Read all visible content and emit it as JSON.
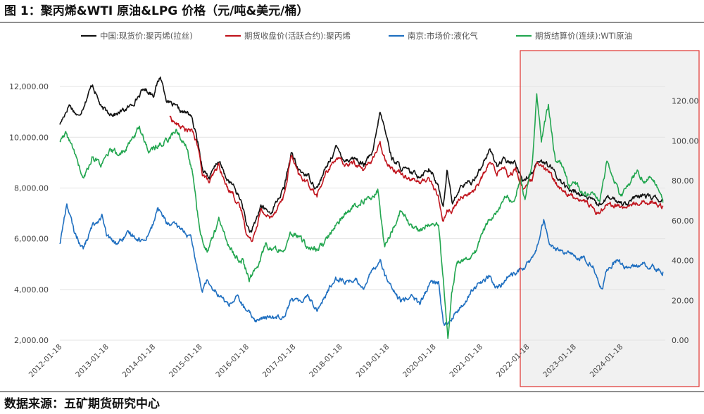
{
  "figure": {
    "title": "图 1：聚丙烯&WTI 原油&LPG 价格（元/吨&美元/桶）",
    "source": "数据来源：五矿期货研究中心"
  },
  "highlight": {
    "label": "2022 onward",
    "stroke": "#e0332f",
    "fill": "#f1f1f1"
  },
  "chart_data": {
    "type": "line",
    "x_tick_labels": [
      "2012-01-18",
      "2013-01-18",
      "2014-01-18",
      "2015-01-18",
      "2016-01-18",
      "2017-01-18",
      "2018-01-18",
      "2019-01-18",
      "2020-01-18",
      "2021-01-18",
      "2022-01-18",
      "2023-01-18",
      "2024-01-18"
    ],
    "x_range": [
      2012.0,
      2024.95
    ],
    "y_left": {
      "range": [
        2000,
        13000
      ],
      "ticks": [
        2000,
        4000,
        6000,
        8000,
        10000,
        12000
      ],
      "tick_labels": [
        "2,000.00",
        "4,000.00",
        "6,000.00",
        "8,000.00",
        "10,000.00",
        "12,000.00"
      ]
    },
    "y_right": {
      "range": [
        0,
        140
      ],
      "ticks": [
        0,
        20,
        40,
        60,
        80,
        100,
        120
      ],
      "tick_labels": [
        "0.00",
        "20.00",
        "40.00",
        "60.00",
        "80.00",
        "100.00",
        "120.00"
      ]
    },
    "series": [
      {
        "name": "中国:现货价:聚丙烯(拉丝)",
        "axis": "left",
        "color": "#111111",
        "points": [
          [
            2012.0,
            10500
          ],
          [
            2012.2,
            11300
          ],
          [
            2012.4,
            10800
          ],
          [
            2012.7,
            12100
          ],
          [
            2012.9,
            11100
          ],
          [
            2013.2,
            10900
          ],
          [
            2013.5,
            11200
          ],
          [
            2013.8,
            11900
          ],
          [
            2014.0,
            11700
          ],
          [
            2014.15,
            12400
          ],
          [
            2014.3,
            11400
          ],
          [
            2014.6,
            11000
          ],
          [
            2014.8,
            10900
          ],
          [
            2014.95,
            9800
          ],
          [
            2015.05,
            8800
          ],
          [
            2015.2,
            8400
          ],
          [
            2015.4,
            9100
          ],
          [
            2015.55,
            8400
          ],
          [
            2015.7,
            8100
          ],
          [
            2015.9,
            7400
          ],
          [
            2016.0,
            6500
          ],
          [
            2016.1,
            6200
          ],
          [
            2016.3,
            7300
          ],
          [
            2016.5,
            7000
          ],
          [
            2016.8,
            8000
          ],
          [
            2016.95,
            9400
          ],
          [
            2017.1,
            8700
          ],
          [
            2017.3,
            8500
          ],
          [
            2017.5,
            8000
          ],
          [
            2017.7,
            8800
          ],
          [
            2017.9,
            9600
          ],
          [
            2018.1,
            9100
          ],
          [
            2018.3,
            9200
          ],
          [
            2018.5,
            8900
          ],
          [
            2018.7,
            9400
          ],
          [
            2018.85,
            11000
          ],
          [
            2018.95,
            10300
          ],
          [
            2019.1,
            9200
          ],
          [
            2019.3,
            8800
          ],
          [
            2019.5,
            8600
          ],
          [
            2019.7,
            8500
          ],
          [
            2019.9,
            8800
          ],
          [
            2020.1,
            8000
          ],
          [
            2020.2,
            7300
          ],
          [
            2020.28,
            8700
          ],
          [
            2020.4,
            7400
          ],
          [
            2020.6,
            8100
          ],
          [
            2020.8,
            8200
          ],
          [
            2021.0,
            8800
          ],
          [
            2021.2,
            9500
          ],
          [
            2021.35,
            8900
          ],
          [
            2021.5,
            9100
          ],
          [
            2021.6,
            9000
          ],
          [
            2021.75,
            9000
          ],
          [
            2021.9,
            8300
          ],
          [
            2022.1,
            8600
          ],
          [
            2022.2,
            9100
          ],
          [
            2022.35,
            9000
          ],
          [
            2022.5,
            8800
          ],
          [
            2022.7,
            8300
          ],
          [
            2022.9,
            7900
          ],
          [
            2023.1,
            7800
          ],
          [
            2023.3,
            7600
          ],
          [
            2023.5,
            7300
          ],
          [
            2023.7,
            7600
          ],
          [
            2023.9,
            7500
          ],
          [
            2024.1,
            7400
          ],
          [
            2024.3,
            7600
          ],
          [
            2024.5,
            7700
          ],
          [
            2024.7,
            7600
          ],
          [
            2024.9,
            7500
          ]
        ]
      },
      {
        "name": "期货收盘价(活跃合约):聚丙烯",
        "axis": "left",
        "color": "#c0141d",
        "points": [
          [
            2014.35,
            10800
          ],
          [
            2014.5,
            10500
          ],
          [
            2014.7,
            10300
          ],
          [
            2014.85,
            10200
          ],
          [
            2014.95,
            9600
          ],
          [
            2015.05,
            8600
          ],
          [
            2015.2,
            8200
          ],
          [
            2015.4,
            8900
          ],
          [
            2015.55,
            8100
          ],
          [
            2015.7,
            7800
          ],
          [
            2015.9,
            7000
          ],
          [
            2016.0,
            6200
          ],
          [
            2016.1,
            5900
          ],
          [
            2016.3,
            7100
          ],
          [
            2016.5,
            6800
          ],
          [
            2016.8,
            7700
          ],
          [
            2016.95,
            9300
          ],
          [
            2017.1,
            8500
          ],
          [
            2017.3,
            8200
          ],
          [
            2017.5,
            7700
          ],
          [
            2017.7,
            8600
          ],
          [
            2017.9,
            9200
          ],
          [
            2018.1,
            8900
          ],
          [
            2018.3,
            9000
          ],
          [
            2018.5,
            8700
          ],
          [
            2018.7,
            9200
          ],
          [
            2018.85,
            9700
          ],
          [
            2018.95,
            9200
          ],
          [
            2019.1,
            8800
          ],
          [
            2019.3,
            8600
          ],
          [
            2019.5,
            8400
          ],
          [
            2019.7,
            8200
          ],
          [
            2019.9,
            8400
          ],
          [
            2020.1,
            7600
          ],
          [
            2020.2,
            6700
          ],
          [
            2020.28,
            7100
          ],
          [
            2020.4,
            7100
          ],
          [
            2020.6,
            7700
          ],
          [
            2020.8,
            7800
          ],
          [
            2021.0,
            8300
          ],
          [
            2021.2,
            9000
          ],
          [
            2021.35,
            8600
          ],
          [
            2021.5,
            8900
          ],
          [
            2021.6,
            8500
          ],
          [
            2021.75,
            8700
          ],
          [
            2021.9,
            8000
          ],
          [
            2022.1,
            8300
          ],
          [
            2022.2,
            8900
          ],
          [
            2022.35,
            8800
          ],
          [
            2022.5,
            8500
          ],
          [
            2022.7,
            8000
          ],
          [
            2022.9,
            7700
          ],
          [
            2023.1,
            7600
          ],
          [
            2023.3,
            7400
          ],
          [
            2023.5,
            7000
          ],
          [
            2023.7,
            7400
          ],
          [
            2023.9,
            7300
          ],
          [
            2024.1,
            7200
          ],
          [
            2024.3,
            7400
          ],
          [
            2024.5,
            7500
          ],
          [
            2024.7,
            7400
          ],
          [
            2024.9,
            7300
          ]
        ]
      },
      {
        "name": "南京:市场价:液化气",
        "axis": "left",
        "color": "#1f6fc0",
        "points": [
          [
            2012.0,
            5800
          ],
          [
            2012.15,
            7400
          ],
          [
            2012.3,
            6300
          ],
          [
            2012.5,
            5600
          ],
          [
            2012.7,
            6500
          ],
          [
            2012.9,
            6900
          ],
          [
            2013.0,
            6100
          ],
          [
            2013.2,
            5800
          ],
          [
            2013.5,
            6200
          ],
          [
            2013.8,
            5900
          ],
          [
            2014.0,
            6600
          ],
          [
            2014.1,
            7200
          ],
          [
            2014.3,
            6600
          ],
          [
            2014.6,
            6400
          ],
          [
            2014.8,
            6000
          ],
          [
            2014.95,
            4700
          ],
          [
            2015.05,
            4000
          ],
          [
            2015.15,
            4400
          ],
          [
            2015.4,
            3800
          ],
          [
            2015.6,
            3400
          ],
          [
            2015.8,
            3700
          ],
          [
            2016.0,
            3100
          ],
          [
            2016.2,
            2800
          ],
          [
            2016.5,
            2900
          ],
          [
            2016.8,
            3000
          ],
          [
            2016.95,
            3600
          ],
          [
            2017.1,
            3500
          ],
          [
            2017.3,
            3800
          ],
          [
            2017.5,
            3200
          ],
          [
            2017.7,
            3800
          ],
          [
            2017.9,
            4500
          ],
          [
            2018.1,
            4300
          ],
          [
            2018.3,
            4400
          ],
          [
            2018.5,
            4100
          ],
          [
            2018.7,
            4800
          ],
          [
            2018.85,
            5200
          ],
          [
            2018.95,
            4600
          ],
          [
            2019.1,
            4000
          ],
          [
            2019.3,
            3500
          ],
          [
            2019.5,
            3800
          ],
          [
            2019.7,
            3400
          ],
          [
            2019.9,
            4200
          ],
          [
            2020.1,
            4300
          ],
          [
            2020.2,
            2700
          ],
          [
            2020.3,
            2600
          ],
          [
            2020.4,
            2900
          ],
          [
            2020.6,
            3300
          ],
          [
            2020.8,
            3900
          ],
          [
            2021.0,
            4300
          ],
          [
            2021.2,
            4500
          ],
          [
            2021.35,
            4000
          ],
          [
            2021.5,
            4300
          ],
          [
            2021.6,
            4500
          ],
          [
            2021.75,
            4700
          ],
          [
            2021.9,
            4800
          ],
          [
            2022.1,
            5200
          ],
          [
            2022.2,
            5600
          ],
          [
            2022.35,
            6700
          ],
          [
            2022.45,
            5900
          ],
          [
            2022.6,
            5600
          ],
          [
            2022.8,
            5400
          ],
          [
            2023.0,
            5400
          ],
          [
            2023.2,
            5200
          ],
          [
            2023.4,
            5000
          ],
          [
            2023.5,
            4400
          ],
          [
            2023.6,
            3900
          ],
          [
            2023.7,
            4800
          ],
          [
            2023.9,
            5100
          ],
          [
            2024.1,
            4900
          ],
          [
            2024.3,
            4900
          ],
          [
            2024.5,
            5000
          ],
          [
            2024.7,
            4900
          ],
          [
            2024.9,
            4700
          ]
        ]
      },
      {
        "name": "期货结算价(连续):WTI原油",
        "axis": "right",
        "color": "#23a650",
        "points": [
          [
            2012.0,
            100
          ],
          [
            2012.15,
            103
          ],
          [
            2012.35,
            92
          ],
          [
            2012.5,
            80
          ],
          [
            2012.7,
            92
          ],
          [
            2012.9,
            88
          ],
          [
            2013.1,
            95
          ],
          [
            2013.3,
            93
          ],
          [
            2013.5,
            99
          ],
          [
            2013.7,
            107
          ],
          [
            2013.9,
            95
          ],
          [
            2014.1,
            97
          ],
          [
            2014.3,
            101
          ],
          [
            2014.5,
            105
          ],
          [
            2014.7,
            97
          ],
          [
            2014.85,
            83
          ],
          [
            2015.0,
            53
          ],
          [
            2015.15,
            45
          ],
          [
            2015.4,
            60
          ],
          [
            2015.6,
            48
          ],
          [
            2015.75,
            42
          ],
          [
            2015.9,
            40
          ],
          [
            2016.05,
            31
          ],
          [
            2016.2,
            35
          ],
          [
            2016.4,
            48
          ],
          [
            2016.6,
            45
          ],
          [
            2016.8,
            47
          ],
          [
            2016.95,
            53
          ],
          [
            2017.1,
            52
          ],
          [
            2017.3,
            47
          ],
          [
            2017.5,
            45
          ],
          [
            2017.7,
            50
          ],
          [
            2017.9,
            58
          ],
          [
            2018.1,
            63
          ],
          [
            2018.3,
            67
          ],
          [
            2018.5,
            70
          ],
          [
            2018.7,
            71
          ],
          [
            2018.8,
            75
          ],
          [
            2018.95,
            46
          ],
          [
            2019.1,
            55
          ],
          [
            2019.3,
            65
          ],
          [
            2019.5,
            57
          ],
          [
            2019.7,
            55
          ],
          [
            2019.9,
            58
          ],
          [
            2020.1,
            58
          ],
          [
            2020.2,
            30
          ],
          [
            2020.3,
            0
          ],
          [
            2020.38,
            25
          ],
          [
            2020.5,
            40
          ],
          [
            2020.7,
            41
          ],
          [
            2020.9,
            45
          ],
          [
            2021.0,
            52
          ],
          [
            2021.2,
            61
          ],
          [
            2021.4,
            66
          ],
          [
            2021.55,
            72
          ],
          [
            2021.7,
            68
          ],
          [
            2021.85,
            82
          ],
          [
            2021.95,
            70
          ],
          [
            2022.1,
            88
          ],
          [
            2022.2,
            123
          ],
          [
            2022.3,
            100
          ],
          [
            2022.45,
            118
          ],
          [
            2022.6,
            90
          ],
          [
            2022.75,
            88
          ],
          [
            2022.9,
            77
          ],
          [
            2023.0,
            80
          ],
          [
            2023.2,
            72
          ],
          [
            2023.4,
            73
          ],
          [
            2023.55,
            70
          ],
          [
            2023.7,
            89
          ],
          [
            2023.85,
            80
          ],
          [
            2024.0,
            72
          ],
          [
            2024.2,
            80
          ],
          [
            2024.35,
            85
          ],
          [
            2024.5,
            79
          ],
          [
            2024.65,
            82
          ],
          [
            2024.8,
            76
          ],
          [
            2024.9,
            69
          ]
        ]
      }
    ]
  }
}
